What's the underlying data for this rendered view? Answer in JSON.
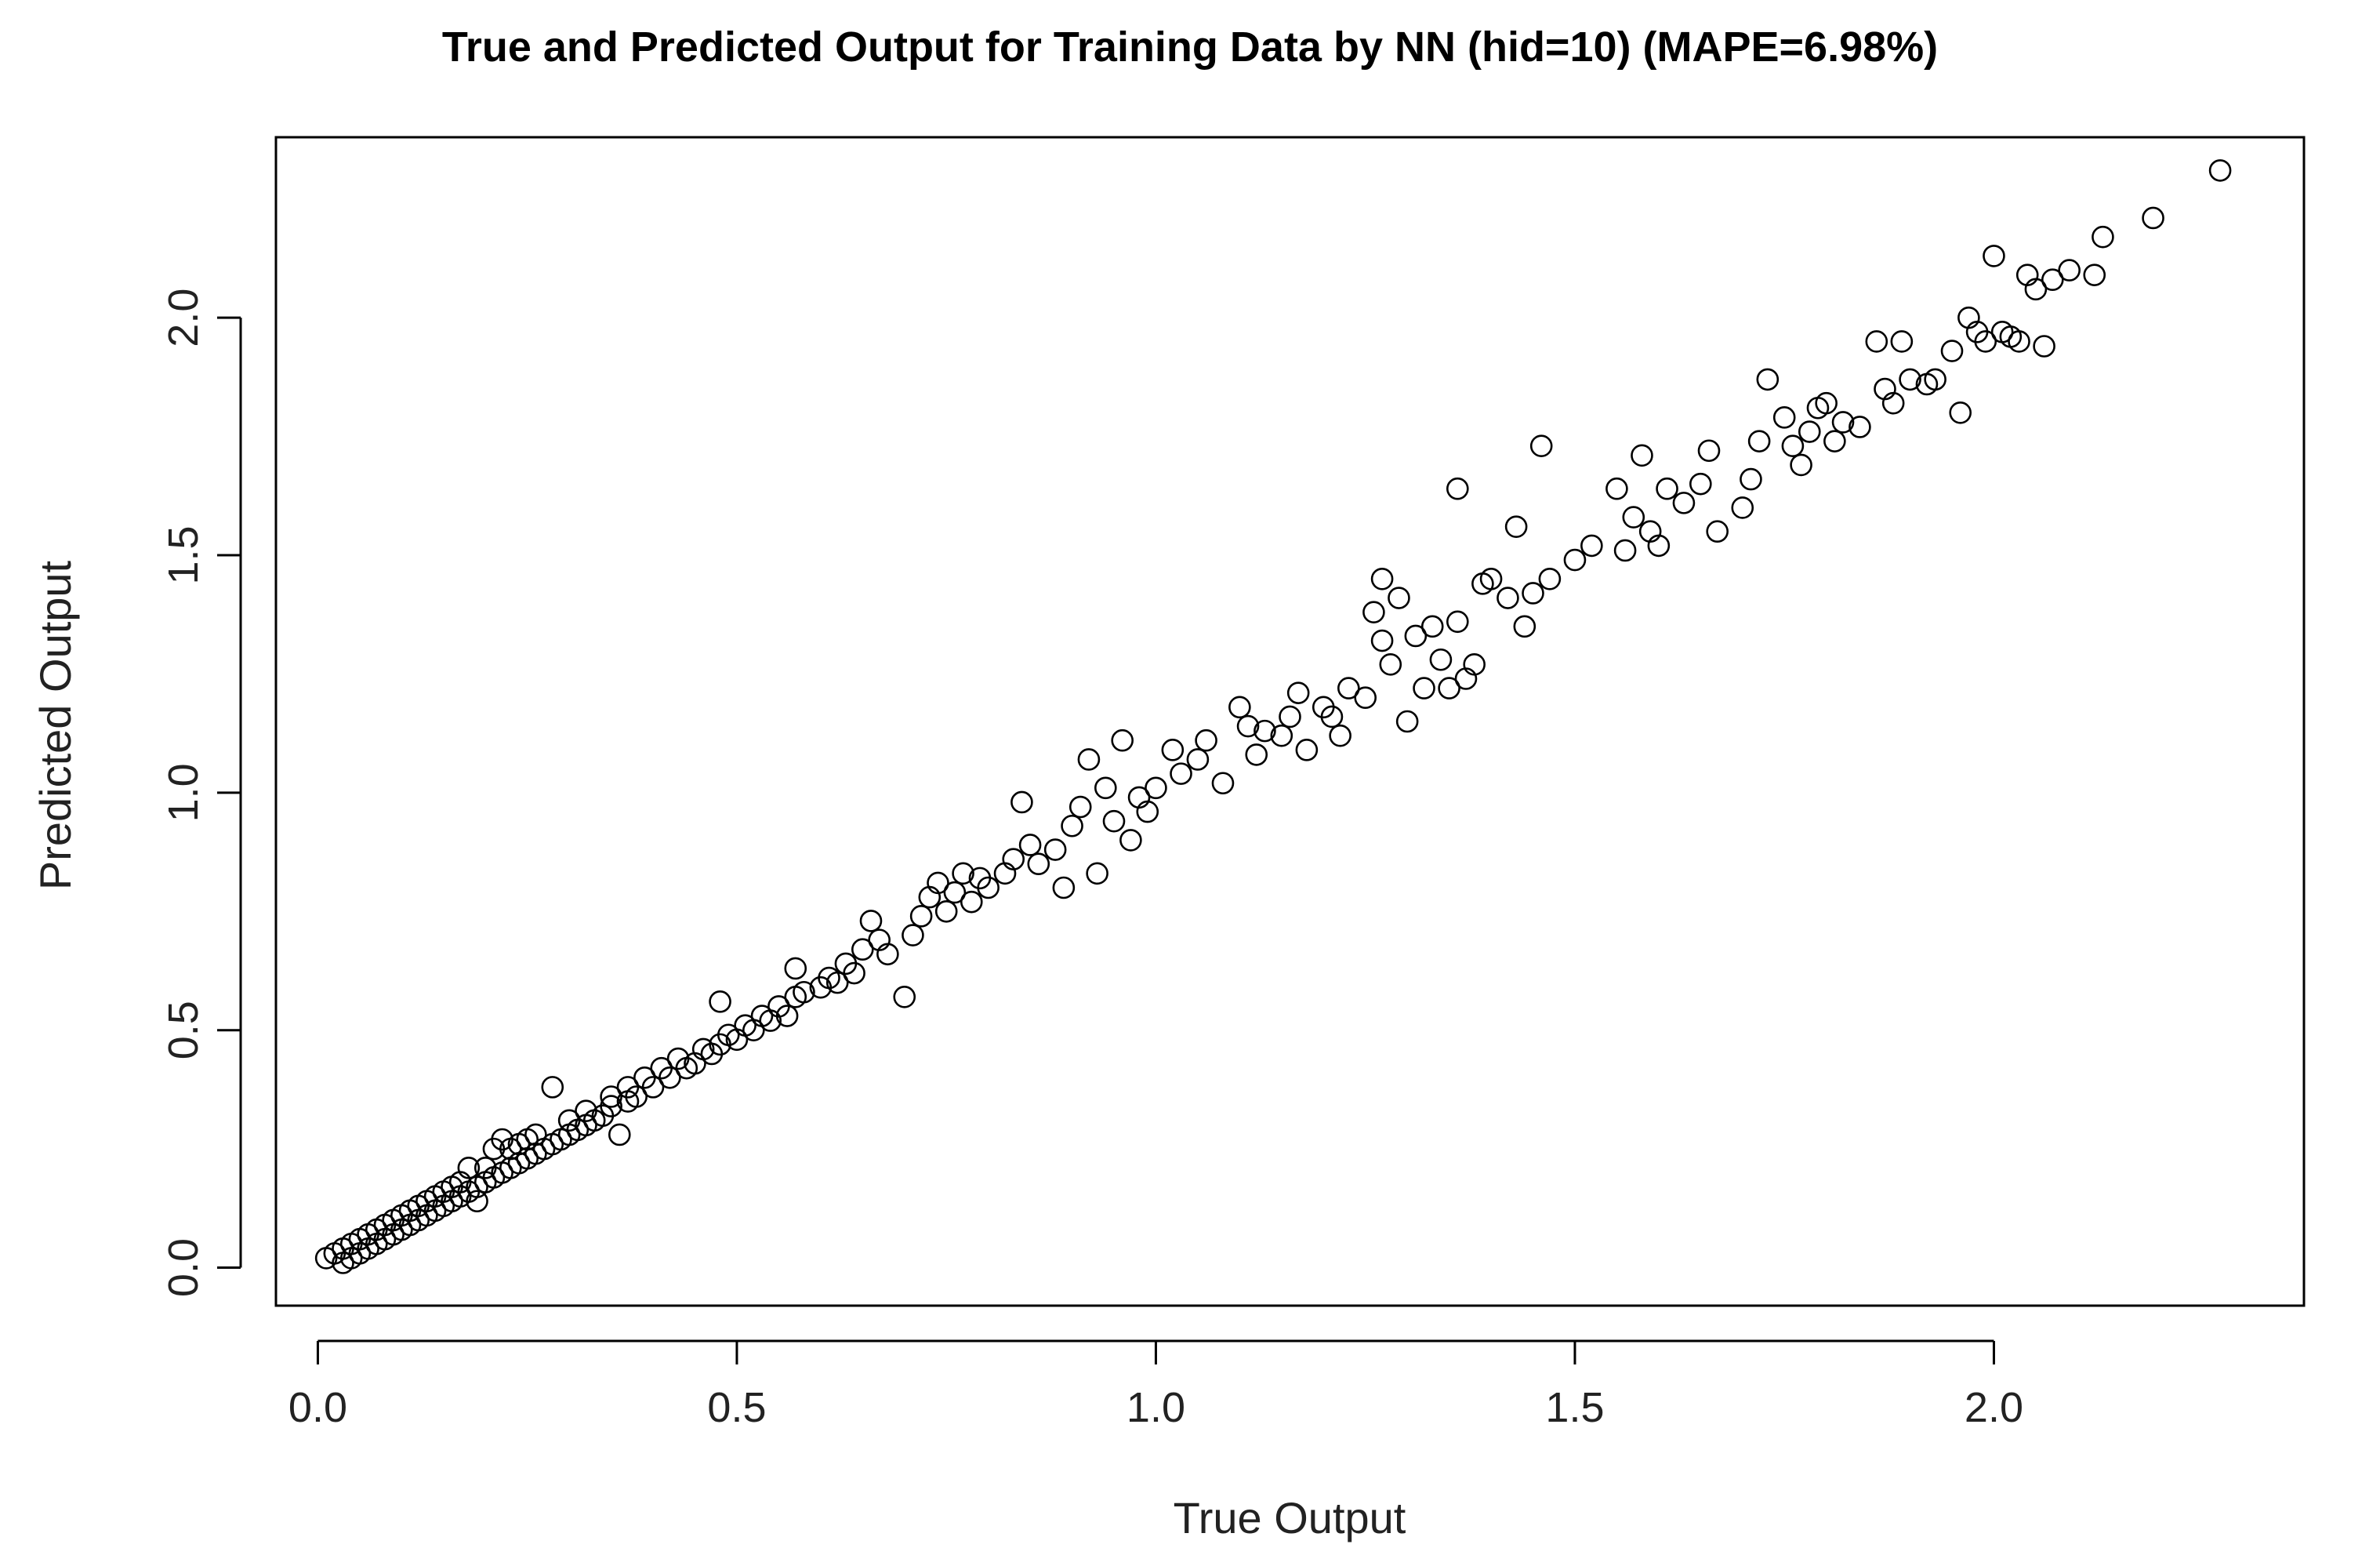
{
  "chart_data": {
    "type": "scatter",
    "title": "True and Predicted Output for Training Data by NN (hid=10) (MAPE=6.98%)",
    "xlabel": "True Output",
    "ylabel": "Predicted Output",
    "xlim": [
      -0.05,
      2.37
    ],
    "ylim": [
      -0.08,
      2.38
    ],
    "xticks": [
      0.0,
      0.5,
      1.0,
      1.5,
      2.0
    ],
    "xtick_labels": [
      "0.0",
      "0.5",
      "1.0",
      "1.5",
      "2.0"
    ],
    "yticks": [
      0.0,
      0.5,
      1.0,
      1.5,
      2.0
    ],
    "ytick_labels": [
      "0.0",
      "0.5",
      "1.0",
      "1.5",
      "2.0"
    ],
    "grid": false,
    "legend": false,
    "marker": "open-circle",
    "point_color": "#000000",
    "series": [
      {
        "values": [
          [
            0.01,
            0.02
          ],
          [
            0.02,
            0.03
          ],
          [
            0.03,
            0.01
          ],
          [
            0.03,
            0.04
          ],
          [
            0.04,
            0.02
          ],
          [
            0.04,
            0.05
          ],
          [
            0.05,
            0.03
          ],
          [
            0.05,
            0.06
          ],
          [
            0.06,
            0.04
          ],
          [
            0.06,
            0.07
          ],
          [
            0.07,
            0.05
          ],
          [
            0.07,
            0.08
          ],
          [
            0.08,
            0.06
          ],
          [
            0.08,
            0.09
          ],
          [
            0.09,
            0.07
          ],
          [
            0.09,
            0.1
          ],
          [
            0.1,
            0.08
          ],
          [
            0.1,
            0.11
          ],
          [
            0.11,
            0.09
          ],
          [
            0.11,
            0.12
          ],
          [
            0.12,
            0.1
          ],
          [
            0.12,
            0.13
          ],
          [
            0.13,
            0.11
          ],
          [
            0.13,
            0.14
          ],
          [
            0.14,
            0.12
          ],
          [
            0.14,
            0.15
          ],
          [
            0.15,
            0.13
          ],
          [
            0.15,
            0.16
          ],
          [
            0.16,
            0.14
          ],
          [
            0.16,
            0.17
          ],
          [
            0.17,
            0.15
          ],
          [
            0.17,
            0.18
          ],
          [
            0.18,
            0.16
          ],
          [
            0.18,
            0.21
          ],
          [
            0.19,
            0.17
          ],
          [
            0.19,
            0.14
          ],
          [
            0.2,
            0.18
          ],
          [
            0.2,
            0.21
          ],
          [
            0.21,
            0.19
          ],
          [
            0.21,
            0.25
          ],
          [
            0.22,
            0.2
          ],
          [
            0.22,
            0.27
          ],
          [
            0.23,
            0.21
          ],
          [
            0.23,
            0.25
          ],
          [
            0.24,
            0.22
          ],
          [
            0.24,
            0.26
          ],
          [
            0.25,
            0.23
          ],
          [
            0.25,
            0.27
          ],
          [
            0.26,
            0.24
          ],
          [
            0.26,
            0.28
          ],
          [
            0.27,
            0.25
          ],
          [
            0.28,
            0.26
          ],
          [
            0.28,
            0.38
          ],
          [
            0.29,
            0.27
          ],
          [
            0.3,
            0.28
          ],
          [
            0.3,
            0.31
          ],
          [
            0.31,
            0.29
          ],
          [
            0.32,
            0.3
          ],
          [
            0.32,
            0.33
          ],
          [
            0.33,
            0.31
          ],
          [
            0.34,
            0.32
          ],
          [
            0.35,
            0.34
          ],
          [
            0.35,
            0.36
          ],
          [
            0.36,
            0.28
          ],
          [
            0.37,
            0.35
          ],
          [
            0.37,
            0.38
          ],
          [
            0.38,
            0.36
          ],
          [
            0.39,
            0.4
          ],
          [
            0.4,
            0.38
          ],
          [
            0.41,
            0.42
          ],
          [
            0.42,
            0.4
          ],
          [
            0.43,
            0.44
          ],
          [
            0.44,
            0.42
          ],
          [
            0.45,
            0.43
          ],
          [
            0.46,
            0.46
          ],
          [
            0.47,
            0.45
          ],
          [
            0.48,
            0.56
          ],
          [
            0.48,
            0.47
          ],
          [
            0.49,
            0.49
          ],
          [
            0.5,
            0.48
          ],
          [
            0.51,
            0.51
          ],
          [
            0.52,
            0.5
          ],
          [
            0.53,
            0.53
          ],
          [
            0.54,
            0.52
          ],
          [
            0.55,
            0.55
          ],
          [
            0.56,
            0.53
          ],
          [
            0.57,
            0.63
          ],
          [
            0.57,
            0.57
          ],
          [
            0.58,
            0.58
          ],
          [
            0.6,
            0.59
          ],
          [
            0.61,
            0.61
          ],
          [
            0.62,
            0.6
          ],
          [
            0.63,
            0.64
          ],
          [
            0.64,
            0.62
          ],
          [
            0.65,
            0.67
          ],
          [
            0.66,
            0.73
          ],
          [
            0.67,
            0.69
          ],
          [
            0.68,
            0.66
          ],
          [
            0.7,
            0.57
          ],
          [
            0.71,
            0.7
          ],
          [
            0.72,
            0.74
          ],
          [
            0.73,
            0.78
          ],
          [
            0.74,
            0.81
          ],
          [
            0.75,
            0.75
          ],
          [
            0.76,
            0.79
          ],
          [
            0.77,
            0.83
          ],
          [
            0.78,
            0.77
          ],
          [
            0.79,
            0.82
          ],
          [
            0.8,
            0.8
          ],
          [
            0.82,
            0.83
          ],
          [
            0.83,
            0.86
          ],
          [
            0.84,
            0.98
          ],
          [
            0.85,
            0.89
          ],
          [
            0.86,
            0.85
          ],
          [
            0.88,
            0.88
          ],
          [
            0.89,
            0.8
          ],
          [
            0.9,
            0.93
          ],
          [
            0.91,
            0.97
          ],
          [
            0.92,
            1.07
          ],
          [
            0.93,
            0.83
          ],
          [
            0.94,
            1.01
          ],
          [
            0.95,
            0.94
          ],
          [
            0.96,
            1.11
          ],
          [
            0.97,
            0.9
          ],
          [
            0.98,
            0.99
          ],
          [
            0.99,
            0.96
          ],
          [
            1.0,
            1.01
          ],
          [
            1.02,
            1.09
          ],
          [
            1.03,
            1.04
          ],
          [
            1.05,
            1.07
          ],
          [
            1.06,
            1.11
          ],
          [
            1.08,
            1.02
          ],
          [
            1.1,
            1.18
          ],
          [
            1.11,
            1.14
          ],
          [
            1.12,
            1.08
          ],
          [
            1.13,
            1.13
          ],
          [
            1.15,
            1.12
          ],
          [
            1.16,
            1.16
          ],
          [
            1.17,
            1.21
          ],
          [
            1.18,
            1.09
          ],
          [
            1.2,
            1.18
          ],
          [
            1.21,
            1.16
          ],
          [
            1.22,
            1.12
          ],
          [
            1.23,
            1.22
          ],
          [
            1.25,
            1.2
          ],
          [
            1.26,
            1.38
          ],
          [
            1.27,
            1.32
          ],
          [
            1.27,
            1.45
          ],
          [
            1.28,
            1.27
          ],
          [
            1.29,
            1.41
          ],
          [
            1.3,
            1.15
          ],
          [
            1.31,
            1.33
          ],
          [
            1.32,
            1.22
          ],
          [
            1.33,
            1.35
          ],
          [
            1.34,
            1.28
          ],
          [
            1.35,
            1.22
          ],
          [
            1.36,
            1.36
          ],
          [
            1.36,
            1.64
          ],
          [
            1.37,
            1.24
          ],
          [
            1.38,
            1.27
          ],
          [
            1.39,
            1.44
          ],
          [
            1.4,
            1.45
          ],
          [
            1.42,
            1.41
          ],
          [
            1.43,
            1.56
          ],
          [
            1.44,
            1.35
          ],
          [
            1.45,
            1.42
          ],
          [
            1.46,
            1.73
          ],
          [
            1.47,
            1.45
          ],
          [
            1.5,
            1.49
          ],
          [
            1.52,
            1.52
          ],
          [
            1.55,
            1.64
          ],
          [
            1.56,
            1.51
          ],
          [
            1.57,
            1.58
          ],
          [
            1.58,
            1.71
          ],
          [
            1.59,
            1.55
          ],
          [
            1.6,
            1.52
          ],
          [
            1.61,
            1.64
          ],
          [
            1.63,
            1.61
          ],
          [
            1.65,
            1.65
          ],
          [
            1.66,
            1.72
          ],
          [
            1.67,
            1.55
          ],
          [
            1.7,
            1.6
          ],
          [
            1.71,
            1.66
          ],
          [
            1.72,
            1.74
          ],
          [
            1.73,
            1.87
          ],
          [
            1.75,
            1.79
          ],
          [
            1.76,
            1.73
          ],
          [
            1.77,
            1.69
          ],
          [
            1.78,
            1.76
          ],
          [
            1.79,
            1.81
          ],
          [
            1.8,
            1.82
          ],
          [
            1.81,
            1.74
          ],
          [
            1.82,
            1.78
          ],
          [
            1.84,
            1.77
          ],
          [
            1.86,
            1.95
          ],
          [
            1.87,
            1.85
          ],
          [
            1.88,
            1.82
          ],
          [
            1.89,
            1.95
          ],
          [
            1.9,
            1.87
          ],
          [
            1.92,
            1.86
          ],
          [
            1.93,
            1.87
          ],
          [
            1.95,
            1.93
          ],
          [
            1.96,
            1.8
          ],
          [
            1.97,
            2.0
          ],
          [
            1.98,
            1.97
          ],
          [
            1.99,
            1.95
          ],
          [
            2.0,
            2.13
          ],
          [
            2.01,
            1.97
          ],
          [
            2.02,
            1.96
          ],
          [
            2.03,
            1.95
          ],
          [
            2.04,
            2.09
          ],
          [
            2.05,
            2.06
          ],
          [
            2.06,
            1.94
          ],
          [
            2.07,
            2.08
          ],
          [
            2.09,
            2.1
          ],
          [
            2.12,
            2.09
          ],
          [
            2.13,
            2.17
          ],
          [
            2.19,
            2.21
          ],
          [
            2.27,
            2.31
          ]
        ]
      }
    ]
  }
}
